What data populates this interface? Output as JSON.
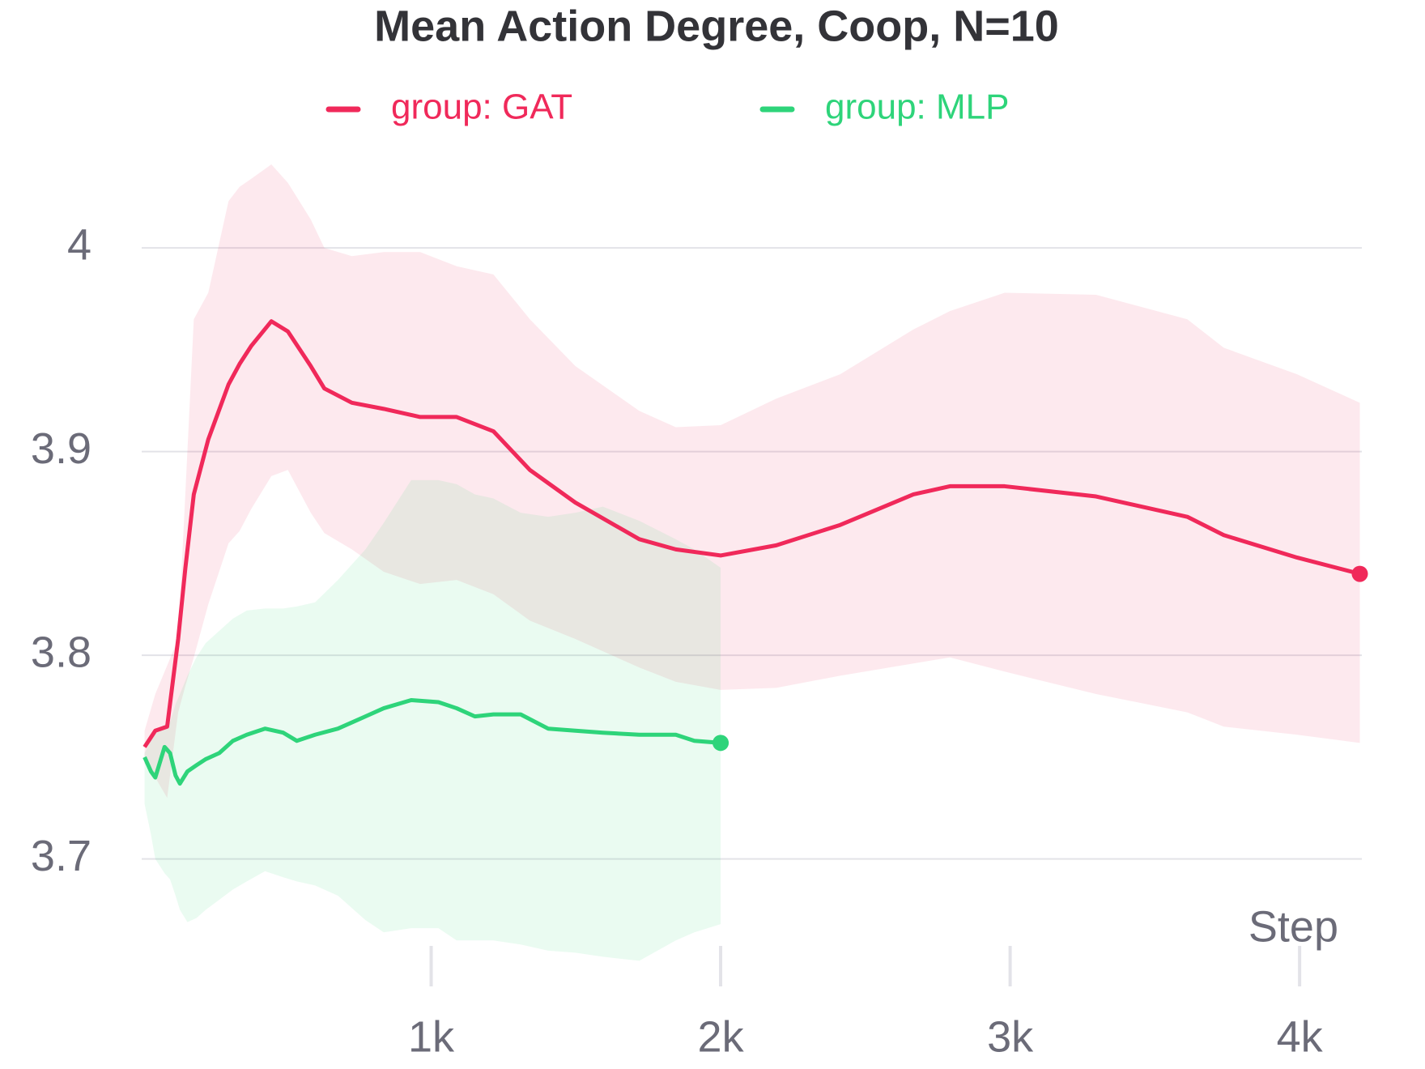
{
  "chart_data": {
    "type": "line",
    "title": "Mean Action Degree, Coop, N=10",
    "x_label": "Step",
    "legend": "top",
    "grid": true,
    "xlim": [
      0,
      4215
    ],
    "ylim": [
      3.645,
      4.045
    ],
    "xticks": [
      {
        "value": 1000,
        "label": "1k"
      },
      {
        "value": 2000,
        "label": "2k"
      },
      {
        "value": 3000,
        "label": "3k"
      },
      {
        "value": 4000,
        "label": "4k"
      }
    ],
    "yticks": [
      3.7,
      3.8,
      3.9,
      4
    ],
    "series": [
      {
        "name": "group: GAT",
        "color": "#f0295a",
        "x": [
          10,
          47,
          88,
          126,
          151,
          180,
          230,
          300,
          338,
          379,
          448,
          505,
          584,
          631,
          726,
          836,
          962,
          1088,
          1215,
          1341,
          1498,
          1719,
          1845,
          2000,
          2192,
          2413,
          2666,
          2792,
          2981,
          3297,
          3612,
          3738,
          3991,
          4208
        ],
        "values": [
          3.755,
          3.763,
          3.765,
          3.808,
          3.843,
          3.879,
          3.906,
          3.933,
          3.943,
          3.952,
          3.964,
          3.959,
          3.942,
          3.931,
          3.924,
          3.921,
          3.917,
          3.917,
          3.91,
          3.891,
          3.875,
          3.857,
          3.852,
          3.849,
          3.854,
          3.864,
          3.879,
          3.883,
          3.883,
          3.878,
          3.868,
          3.859,
          3.848,
          3.84
        ],
        "upper": [
          3.763,
          3.781,
          3.795,
          3.808,
          3.88,
          3.965,
          3.978,
          4.023,
          4.03,
          4.034,
          4.041,
          4.032,
          4.014,
          4.0,
          3.996,
          3.998,
          3.998,
          3.991,
          3.987,
          3.965,
          3.942,
          3.92,
          3.912,
          3.913,
          3.926,
          3.938,
          3.96,
          3.969,
          3.978,
          3.977,
          3.965,
          3.951,
          3.938,
          3.924
        ],
        "lower": [
          3.747,
          3.74,
          3.73,
          3.772,
          3.785,
          3.799,
          3.825,
          3.855,
          3.861,
          3.872,
          3.888,
          3.891,
          3.87,
          3.86,
          3.852,
          3.841,
          3.835,
          3.837,
          3.83,
          3.817,
          3.808,
          3.794,
          3.787,
          3.783,
          3.784,
          3.79,
          3.796,
          3.799,
          3.792,
          3.781,
          3.772,
          3.765,
          3.761,
          3.757
        ]
      },
      {
        "name": "group: MLP",
        "color": "#2ed47a",
        "x": [
          10,
          32,
          47,
          79,
          98,
          117,
          132,
          158,
          189,
          221,
          268,
          315,
          363,
          426,
          489,
          536,
          599,
          678,
          773,
          836,
          931,
          1025,
          1088,
          1151,
          1215,
          1309,
          1404,
          1498,
          1593,
          1719,
          1845,
          1909,
          2000
        ],
        "values": [
          3.75,
          3.743,
          3.74,
          3.755,
          3.752,
          3.741,
          3.737,
          3.743,
          3.746,
          3.749,
          3.752,
          3.758,
          3.761,
          3.764,
          3.762,
          3.758,
          3.761,
          3.764,
          3.77,
          3.774,
          3.778,
          3.777,
          3.774,
          3.77,
          3.771,
          3.771,
          3.764,
          3.763,
          3.762,
          3.761,
          3.761,
          3.758,
          3.757
        ],
        "upper": [
          3.752,
          3.758,
          3.763,
          3.766,
          3.767,
          3.776,
          3.781,
          3.79,
          3.799,
          3.806,
          3.812,
          3.818,
          3.822,
          3.823,
          3.823,
          3.824,
          3.826,
          3.837,
          3.852,
          3.865,
          3.886,
          3.886,
          3.884,
          3.879,
          3.877,
          3.87,
          3.868,
          3.87,
          3.873,
          3.866,
          3.857,
          3.852,
          3.843
        ],
        "lower": [
          3.727,
          3.712,
          3.7,
          3.693,
          3.69,
          3.682,
          3.675,
          3.669,
          3.671,
          3.675,
          3.68,
          3.685,
          3.689,
          3.694,
          3.691,
          3.689,
          3.687,
          3.682,
          3.67,
          3.664,
          3.666,
          3.666,
          3.66,
          3.66,
          3.66,
          3.658,
          3.655,
          3.654,
          3.652,
          3.65,
          3.66,
          3.664,
          3.668
        ]
      }
    ]
  }
}
